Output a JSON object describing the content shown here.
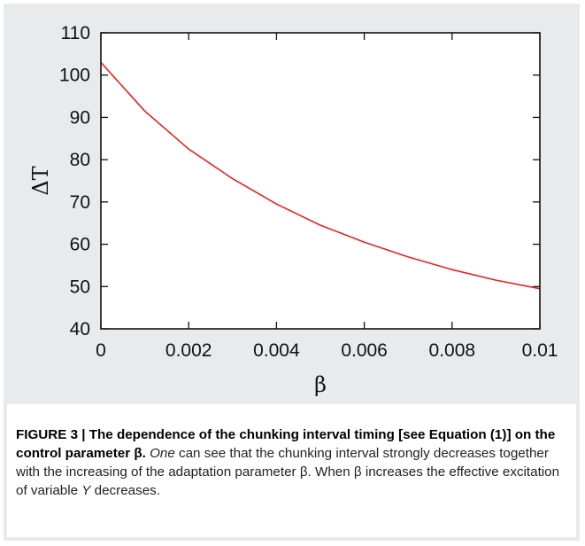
{
  "chart_data": {
    "type": "line",
    "title": "",
    "xlabel": "β",
    "ylabel": "ΔT",
    "xlim": [
      0,
      0.01
    ],
    "ylim": [
      40,
      110
    ],
    "x_ticks": [
      "0",
      "0.002",
      "0.004",
      "0.006",
      "0.008",
      "0.01"
    ],
    "y_ticks": [
      "40",
      "50",
      "60",
      "70",
      "80",
      "90",
      "100",
      "110"
    ],
    "grid": false,
    "legend": "none",
    "series": [
      {
        "color": "#e8211d",
        "x": [
          0,
          0.001,
          0.002,
          0.003,
          0.004,
          0.005,
          0.006,
          0.007,
          0.008,
          0.009,
          0.01
        ],
        "y": [
          103,
          91.5,
          82.5,
          75.5,
          69.5,
          64.5,
          60.5,
          57,
          54,
          51.5,
          49.5
        ]
      }
    ]
  },
  "caption": {
    "lead": "FIGURE 3 | The dependence of the chunking interval timing [see Equation (1)] on the control parameter β.",
    "part1": " ",
    "part1_italic": "One",
    "part2": " can see that the chunking interval strongly decreases together with the increasing of the adaptation parameter β. When β increases the effective excitation of variable ",
    "part2_italic": "Y",
    "part3": " decreases."
  }
}
